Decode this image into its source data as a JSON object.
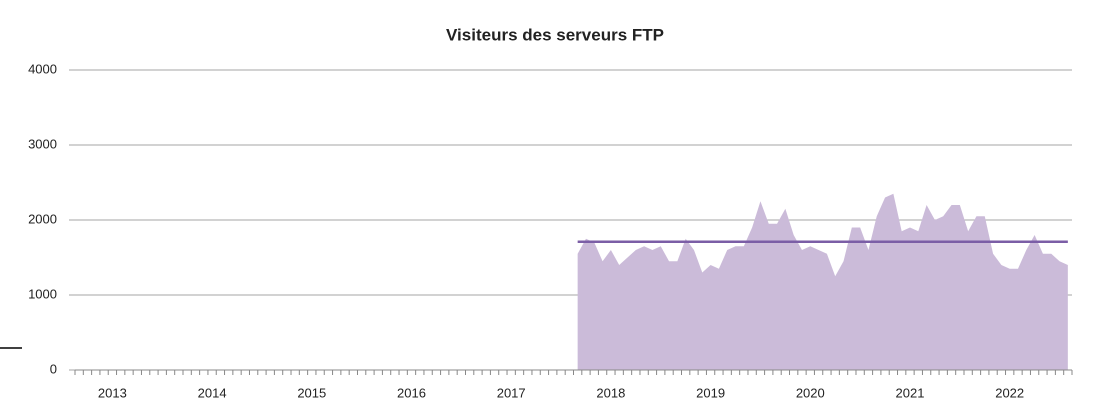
{
  "chart_data": {
    "type": "area",
    "title": "Visiteurs des serveurs FTP",
    "categories": [
      null,
      null,
      null,
      null,
      "2013",
      null,
      null,
      null,
      null,
      null,
      null,
      null,
      null,
      null,
      null,
      null,
      "2014",
      null,
      null,
      null,
      null,
      null,
      null,
      null,
      null,
      null,
      null,
      null,
      "2015",
      null,
      null,
      null,
      null,
      null,
      null,
      null,
      null,
      null,
      null,
      null,
      "2016",
      null,
      null,
      null,
      null,
      null,
      null,
      null,
      null,
      null,
      null,
      null,
      "2017",
      null,
      null,
      null,
      null,
      null,
      null,
      null,
      null,
      null,
      null,
      null,
      "2018",
      null,
      null,
      null,
      null,
      null,
      null,
      null,
      null,
      null,
      null,
      null,
      "2019",
      null,
      null,
      null,
      null,
      null,
      null,
      null,
      null,
      null,
      null,
      null,
      "2020",
      null,
      null,
      null,
      null,
      null,
      null,
      null,
      null,
      null,
      null,
      null,
      "2021",
      null,
      null,
      null,
      null,
      null,
      null,
      null,
      null,
      null,
      null,
      null,
      "2022",
      null,
      null,
      null,
      null,
      null,
      null,
      null
    ],
    "series": [
      {
        "color": "#cbbbd9",
        "values": [
          null,
          null,
          null,
          null,
          null,
          null,
          null,
          null,
          null,
          null,
          null,
          null,
          null,
          null,
          null,
          null,
          null,
          null,
          null,
          null,
          null,
          null,
          null,
          null,
          null,
          null,
          null,
          null,
          null,
          null,
          null,
          null,
          null,
          null,
          null,
          null,
          null,
          null,
          null,
          null,
          null,
          null,
          null,
          null,
          null,
          null,
          null,
          null,
          null,
          null,
          null,
          null,
          null,
          null,
          null,
          null,
          null,
          null,
          null,
          null,
          1550,
          1750,
          1700,
          1450,
          1600,
          1400,
          1500,
          1600,
          1650,
          1600,
          1650,
          1450,
          1450,
          1750,
          1600,
          1300,
          1400,
          1350,
          1600,
          1650,
          1650,
          1900,
          2250,
          1950,
          1950,
          2150,
          1800,
          1600,
          1650,
          1600,
          1550,
          1250,
          1450,
          1900,
          1900,
          1600,
          2050,
          2300,
          2350,
          1850,
          1900,
          1850,
          2200,
          2000,
          2050,
          2200,
          2200,
          1850,
          2050,
          2050,
          1550,
          1400,
          1350,
          1350,
          1600,
          1800,
          1550,
          1550,
          1450,
          1400
        ]
      }
    ],
    "reference_line": {
      "value": 1710,
      "color": "#7b5ea6"
    },
    "ylim": [
      0,
      4000
    ],
    "yticks": [
      0,
      1000,
      2000,
      3000,
      4000
    ],
    "grid": true
  }
}
